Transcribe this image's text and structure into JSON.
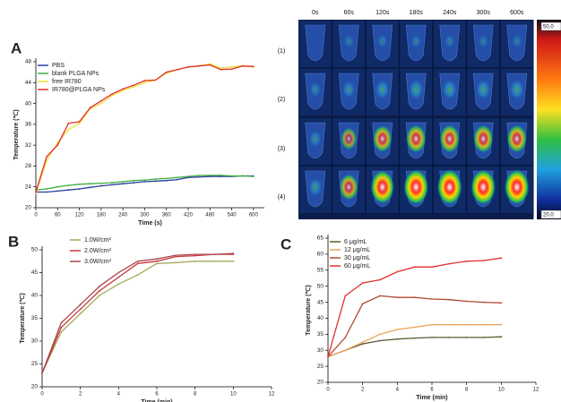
{
  "chart_data": [
    {
      "type": "line",
      "panel_label": "A",
      "x_label": "Time (s)",
      "y_label": "Temperature (℃)",
      "x": [
        0,
        30,
        60,
        90,
        120,
        150,
        180,
        210,
        240,
        270,
        300,
        330,
        360,
        390,
        420,
        450,
        480,
        510,
        540,
        570,
        600
      ],
      "xlim": [
        0,
        630
      ],
      "xticks": [
        0,
        60,
        120,
        180,
        240,
        300,
        360,
        420,
        480,
        540,
        600
      ],
      "ylim": [
        20,
        48
      ],
      "yticks": [
        20,
        24,
        28,
        32,
        36,
        40,
        44,
        48
      ],
      "legend": "upper left",
      "series": [
        {
          "name": "PBS",
          "color": "#2a3f9a",
          "values": [
            23,
            23,
            23.2,
            23.4,
            23.6,
            23.9,
            24.2,
            24.4,
            24.6,
            24.8,
            25,
            25.1,
            25.2,
            25.4,
            25.8,
            25.9,
            26,
            26,
            26,
            26.1,
            26.1
          ]
        },
        {
          "name": "blank PLGA NPs",
          "color": "#3fae3f",
          "values": [
            23.4,
            23.6,
            24,
            24.3,
            24.5,
            24.6,
            24.7,
            24.8,
            25,
            25.2,
            25.3,
            25.5,
            25.6,
            25.8,
            26,
            26.2,
            26.2,
            26.2,
            26.1,
            26.1,
            26
          ]
        },
        {
          "name": "free IR780",
          "color": "#f2dc3a",
          "values": [
            22.8,
            29,
            32.5,
            35,
            36.2,
            39,
            40,
            41.5,
            42.5,
            43.2,
            44,
            44.5,
            45.8,
            46.5,
            47,
            47.2,
            47.6,
            46.8,
            47,
            47.2,
            47
          ]
        },
        {
          "name": "IR780@PLGA NPs",
          "color": "#e0302a",
          "values": [
            23,
            29.8,
            32,
            36.2,
            36.5,
            39.2,
            40.5,
            41.8,
            42.8,
            43.5,
            44.4,
            44.5,
            46,
            46.5,
            47,
            47.2,
            47.4,
            46.5,
            46.6,
            47.2,
            47.1
          ]
        }
      ]
    },
    {
      "type": "line",
      "panel_label": "B",
      "x_label": "Time (min)",
      "y_label": "Temperature (℃)",
      "x": [
        0,
        1,
        2,
        3,
        4,
        5,
        6,
        7,
        8,
        9,
        10
      ],
      "xlim": [
        0,
        12
      ],
      "xticks": [
        0,
        2,
        4,
        6,
        8,
        10,
        12
      ],
      "ylim": [
        20,
        50
      ],
      "yticks": [
        20,
        25,
        30,
        35,
        40,
        45,
        50
      ],
      "legend": "upper left",
      "series": [
        {
          "name": "1.0W/cm²",
          "color": "#a6a85a",
          "values": [
            23,
            32,
            36,
            40,
            42.5,
            44.5,
            47,
            47.2,
            47.5,
            47.5,
            47.5
          ]
        },
        {
          "name": "2.0W/cm²",
          "color": "#c8383c",
          "values": [
            23,
            33,
            37,
            41,
            44,
            47,
            47.5,
            48.5,
            48.7,
            49,
            49
          ]
        },
        {
          "name": "3.0W/cm²",
          "color": "#a8484c",
          "values": [
            23,
            34,
            38,
            42,
            45,
            47.5,
            48,
            48.8,
            49,
            49,
            49.2
          ]
        }
      ]
    },
    {
      "type": "line",
      "panel_label": "C",
      "x_label": "Time (min)",
      "y_label": "Temperature (℃)",
      "x": [
        0,
        1,
        2,
        3,
        4,
        5,
        6,
        7,
        8,
        9,
        10
      ],
      "xlim": [
        0,
        12
      ],
      "xticks": [
        0,
        2,
        4,
        6,
        8,
        10,
        12
      ],
      "ylim": [
        20,
        65
      ],
      "yticks": [
        20,
        25,
        30,
        35,
        40,
        45,
        50,
        55,
        60,
        65
      ],
      "legend": "upper left",
      "series": [
        {
          "name": "6 μg/mL",
          "color": "#5e5a32",
          "values": [
            28,
            30,
            32,
            33,
            33.5,
            33.8,
            34,
            34,
            34,
            34,
            34.2
          ]
        },
        {
          "name": "12 μg/mL",
          "color": "#eba055",
          "values": [
            28,
            30,
            32.5,
            35,
            36.5,
            37.2,
            38,
            38,
            38,
            38,
            38
          ]
        },
        {
          "name": "30 μg/mL",
          "color": "#b04a32",
          "values": [
            28,
            34,
            44.5,
            47,
            46.5,
            46.5,
            46,
            45.8,
            45.3,
            45,
            44.8
          ]
        },
        {
          "name": "60 μg/mL",
          "color": "#e0302e",
          "values": [
            28,
            47,
            51,
            52,
            54.5,
            56,
            56,
            57,
            57.8,
            58,
            58.8
          ]
        }
      ]
    }
  ],
  "thermal_images": {
    "times": [
      "0s",
      "60s",
      "120s",
      "180s",
      "240s",
      "300s",
      "600s"
    ],
    "rows": [
      "(1)",
      "(2)",
      "(3)",
      "(4)"
    ],
    "scale_max": "50.0",
    "scale_min": "20.0"
  }
}
